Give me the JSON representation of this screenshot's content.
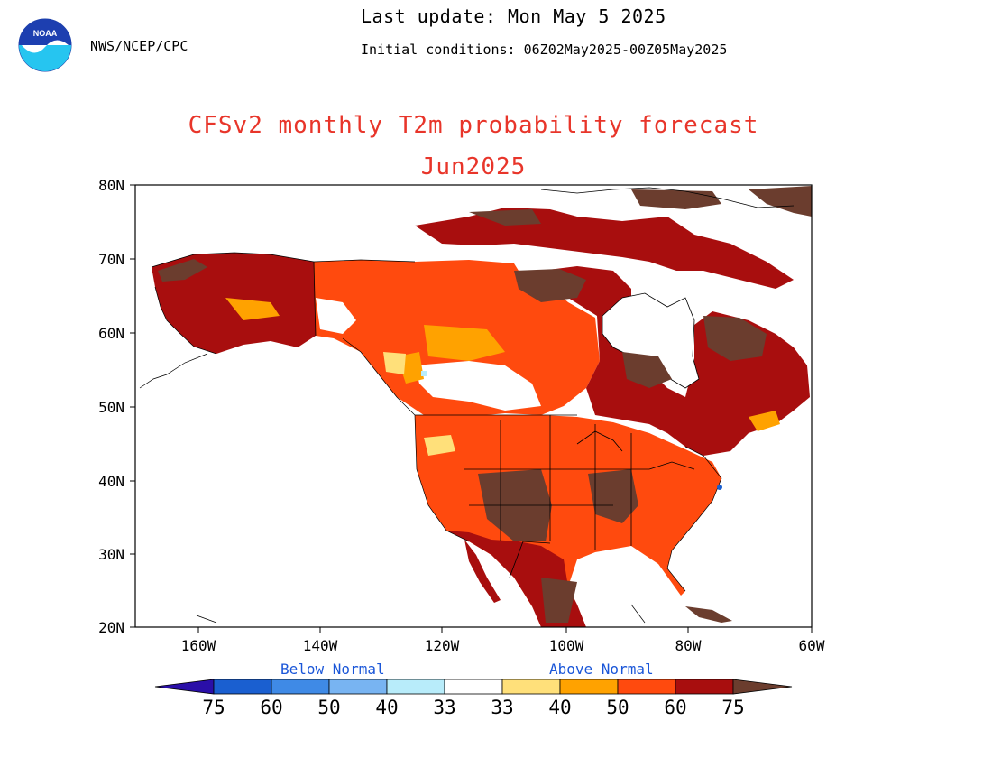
{
  "header": {
    "agency": "NWS/NCEP/CPC",
    "last_update": "Last update: Mon May 5 2025",
    "initial_conditions": "Initial conditions: 06Z02May2025-00Z05May2025",
    "logo_text": "NOAA"
  },
  "title": "CFSv2 monthly T2m probability forecast",
  "subtitle": "Jun2025",
  "map": {
    "lat_ticks": [
      "80N",
      "70N",
      "60N",
      "50N",
      "40N",
      "30N",
      "20N"
    ],
    "lon_ticks": [
      "160W",
      "140W",
      "120W",
      "100W",
      "80W",
      "60W"
    ],
    "ocean_color": "#ffffff",
    "coastline_color": "#000000"
  },
  "legend": {
    "below_label": "Below Normal",
    "above_label": "Above Normal",
    "labels": [
      "75",
      "60",
      "50",
      "40",
      "33",
      "33",
      "40",
      "50",
      "60",
      "75"
    ],
    "colors": {
      "below_75_arrow": "#2a0fa8",
      "below_60": "#1a5fd0",
      "below_50": "#3f8ae6",
      "below_40": "#78b4f2",
      "below_33": "#b8ecfa",
      "normal": "#ffffff",
      "above_33": "#ffe07a",
      "above_40": "#ffa200",
      "above_50": "#ff4a0e",
      "above_60": "#a80e0e",
      "above_75_arrow": "#6b3d2e"
    }
  }
}
